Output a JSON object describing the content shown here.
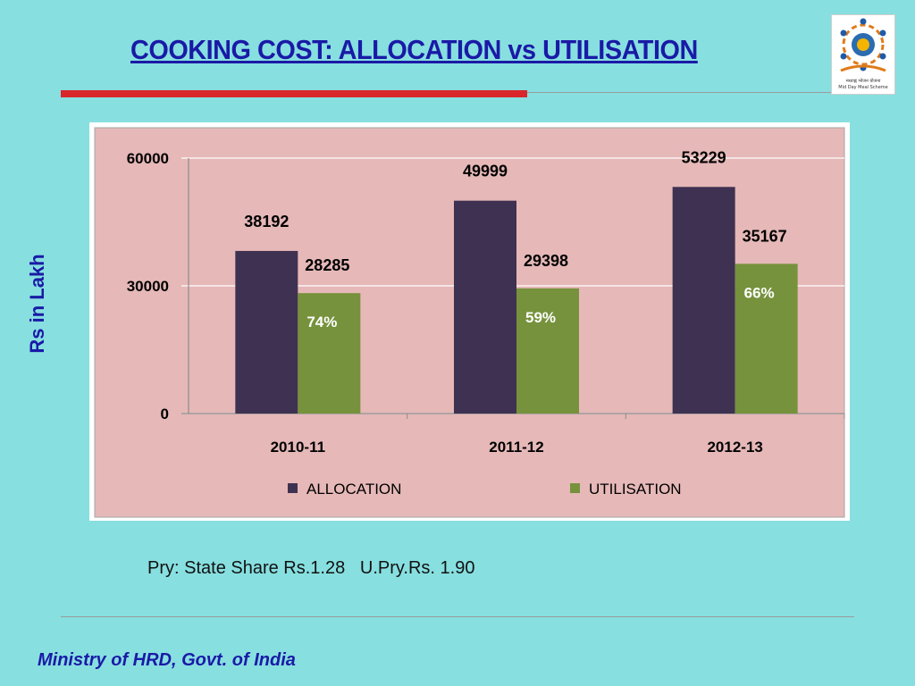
{
  "slide": {
    "title": "COOKING COST: ALLOCATION vs UTILISATION",
    "y_axis_label": "Rs in Lakh",
    "footnote": "Pry: State Share Rs.1.28   U.Pry.Rs. 1.90",
    "footer": "Ministry of HRD, Govt. of India",
    "logo": {
      "caption_line1": "मध्याह्न भोजन योजना",
      "caption_line2": "Mid Day Meal Scheme",
      "icon": "mid-day-meal-logo-icon"
    }
  },
  "colors": {
    "background": "#87dfe0",
    "title": "#1a1aa6",
    "accent_rule": "#d9262a",
    "plot_area": "#e6b8b8",
    "allocation": "#3f3151",
    "utilisation": "#76923c"
  },
  "chart_data": {
    "type": "bar",
    "title": "",
    "xlabel": "",
    "ylabel": "Rs in Lakh",
    "categories": [
      "2010-11",
      "2011-12",
      "2012-13"
    ],
    "series": [
      {
        "name": "ALLOCATION",
        "values": [
          38192,
          49999,
          53229
        ],
        "color": "#3f3151"
      },
      {
        "name": "UTILISATION",
        "values": [
          28285,
          29398,
          35167
        ],
        "color": "#76923c"
      }
    ],
    "utilisation_percent_labels": [
      "74%",
      "59%",
      "66%"
    ],
    "ylim": [
      0,
      60000
    ],
    "yticks": [
      0,
      30000,
      60000
    ],
    "grid": true,
    "legend": "bottom"
  }
}
